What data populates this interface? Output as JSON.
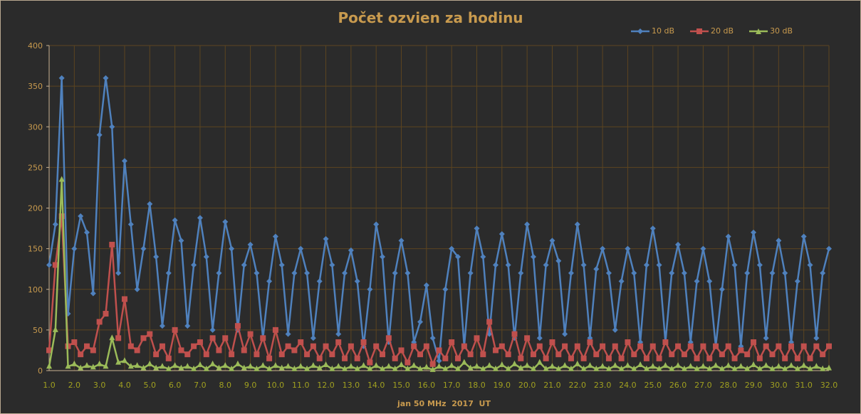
{
  "chart_data": {
    "type": "line",
    "title": "Počet ozvien za hodinu",
    "xlabel": "jan 50 MHz  2017  UT",
    "ylabel": "",
    "xlim": [
      1.0,
      32.0
    ],
    "ylim": [
      0,
      400
    ],
    "x_ticks": [
      "1.0",
      "2.0",
      "3.0",
      "4.0",
      "5.0",
      "6.0",
      "7.0",
      "8.0",
      "9.0",
      "10.0",
      "11.0",
      "12.0",
      "13.0",
      "14.0",
      "15.0",
      "16.0",
      "17.0",
      "18.0",
      "19.0",
      "20.0",
      "21.0",
      "22.0",
      "23.0",
      "24.0",
      "25.0",
      "26.0",
      "27.0",
      "28.0",
      "29.0",
      "30.0",
      "31.0",
      "32.0"
    ],
    "y_ticks": [
      "0",
      "50",
      "100",
      "150",
      "200",
      "250",
      "300",
      "350",
      "400"
    ],
    "grid": true,
    "legend_position": "top-right",
    "x_step": 0.25,
    "series": [
      {
        "name": "10 dB",
        "color": "#4f81bd",
        "marker": "diamond",
        "values": [
          130,
          180,
          360,
          70,
          150,
          190,
          170,
          95,
          290,
          360,
          300,
          120,
          258,
          180,
          100,
          150,
          205,
          140,
          55,
          120,
          185,
          160,
          55,
          130,
          188,
          140,
          50,
          120,
          183,
          150,
          50,
          130,
          155,
          120,
          40,
          110,
          165,
          130,
          45,
          120,
          150,
          120,
          40,
          110,
          162,
          130,
          45,
          120,
          148,
          110,
          30,
          100,
          180,
          140,
          35,
          120,
          160,
          120,
          35,
          60,
          105,
          40,
          12,
          100,
          150,
          140,
          30,
          120,
          175,
          140,
          45,
          130,
          168,
          130,
          40,
          120,
          180,
          140,
          40,
          130,
          160,
          135,
          45,
          120,
          180,
          130,
          40,
          125,
          150,
          120,
          50,
          110,
          150,
          120,
          35,
          130,
          175,
          130,
          35,
          120,
          155,
          120,
          35,
          110,
          150,
          110,
          30,
          100,
          165,
          130,
          30,
          120,
          170,
          130,
          40,
          120,
          160,
          120,
          35,
          110,
          165,
          130,
          40,
          120,
          150
        ]
      },
      {
        "name": "20 dB",
        "color": "#c0504d",
        "marker": "square",
        "values": [
          25,
          130,
          190,
          30,
          35,
          20,
          30,
          25,
          60,
          70,
          155,
          40,
          88,
          30,
          25,
          40,
          45,
          20,
          30,
          15,
          50,
          25,
          20,
          30,
          35,
          20,
          40,
          25,
          40,
          20,
          55,
          25,
          45,
          20,
          40,
          15,
          50,
          20,
          30,
          25,
          35,
          20,
          30,
          15,
          30,
          20,
          35,
          15,
          30,
          15,
          35,
          10,
          30,
          20,
          40,
          15,
          25,
          10,
          30,
          20,
          30,
          8,
          25,
          15,
          35,
          15,
          30,
          20,
          40,
          20,
          60,
          25,
          30,
          20,
          45,
          15,
          40,
          20,
          30,
          15,
          35,
          20,
          30,
          15,
          30,
          15,
          35,
          20,
          30,
          15,
          30,
          15,
          35,
          20,
          30,
          15,
          30,
          15,
          35,
          20,
          30,
          20,
          30,
          15,
          30,
          15,
          30,
          20,
          30,
          15,
          25,
          20,
          35,
          15,
          30,
          20,
          30,
          15,
          30,
          15,
          30,
          15,
          30,
          20,
          30
        ]
      },
      {
        "name": "30 dB",
        "color": "#9bbb59",
        "marker": "triangle",
        "values": [
          5,
          50,
          235,
          5,
          8,
          3,
          6,
          4,
          8,
          5,
          40,
          10,
          12,
          5,
          6,
          3,
          8,
          3,
          5,
          2,
          6,
          3,
          5,
          2,
          7,
          2,
          8,
          3,
          6,
          2,
          8,
          3,
          5,
          2,
          6,
          2,
          6,
          3,
          5,
          2,
          5,
          2,
          6,
          3,
          7,
          2,
          5,
          2,
          5,
          2,
          6,
          2,
          6,
          2,
          5,
          2,
          7,
          2,
          6,
          2,
          4,
          1,
          5,
          2,
          6,
          2,
          10,
          3,
          5,
          2,
          6,
          2,
          7,
          2,
          8,
          3,
          6,
          2,
          10,
          2,
          5,
          2,
          6,
          2,
          8,
          2,
          6,
          2,
          5,
          2,
          6,
          2,
          6,
          2,
          7,
          2,
          5,
          2,
          6,
          2,
          6,
          2,
          5,
          2,
          5,
          2,
          6,
          2,
          6,
          2,
          5,
          2,
          7,
          2,
          6,
          2,
          5,
          2,
          6,
          2,
          6,
          2,
          5,
          2,
          3
        ]
      }
    ]
  }
}
